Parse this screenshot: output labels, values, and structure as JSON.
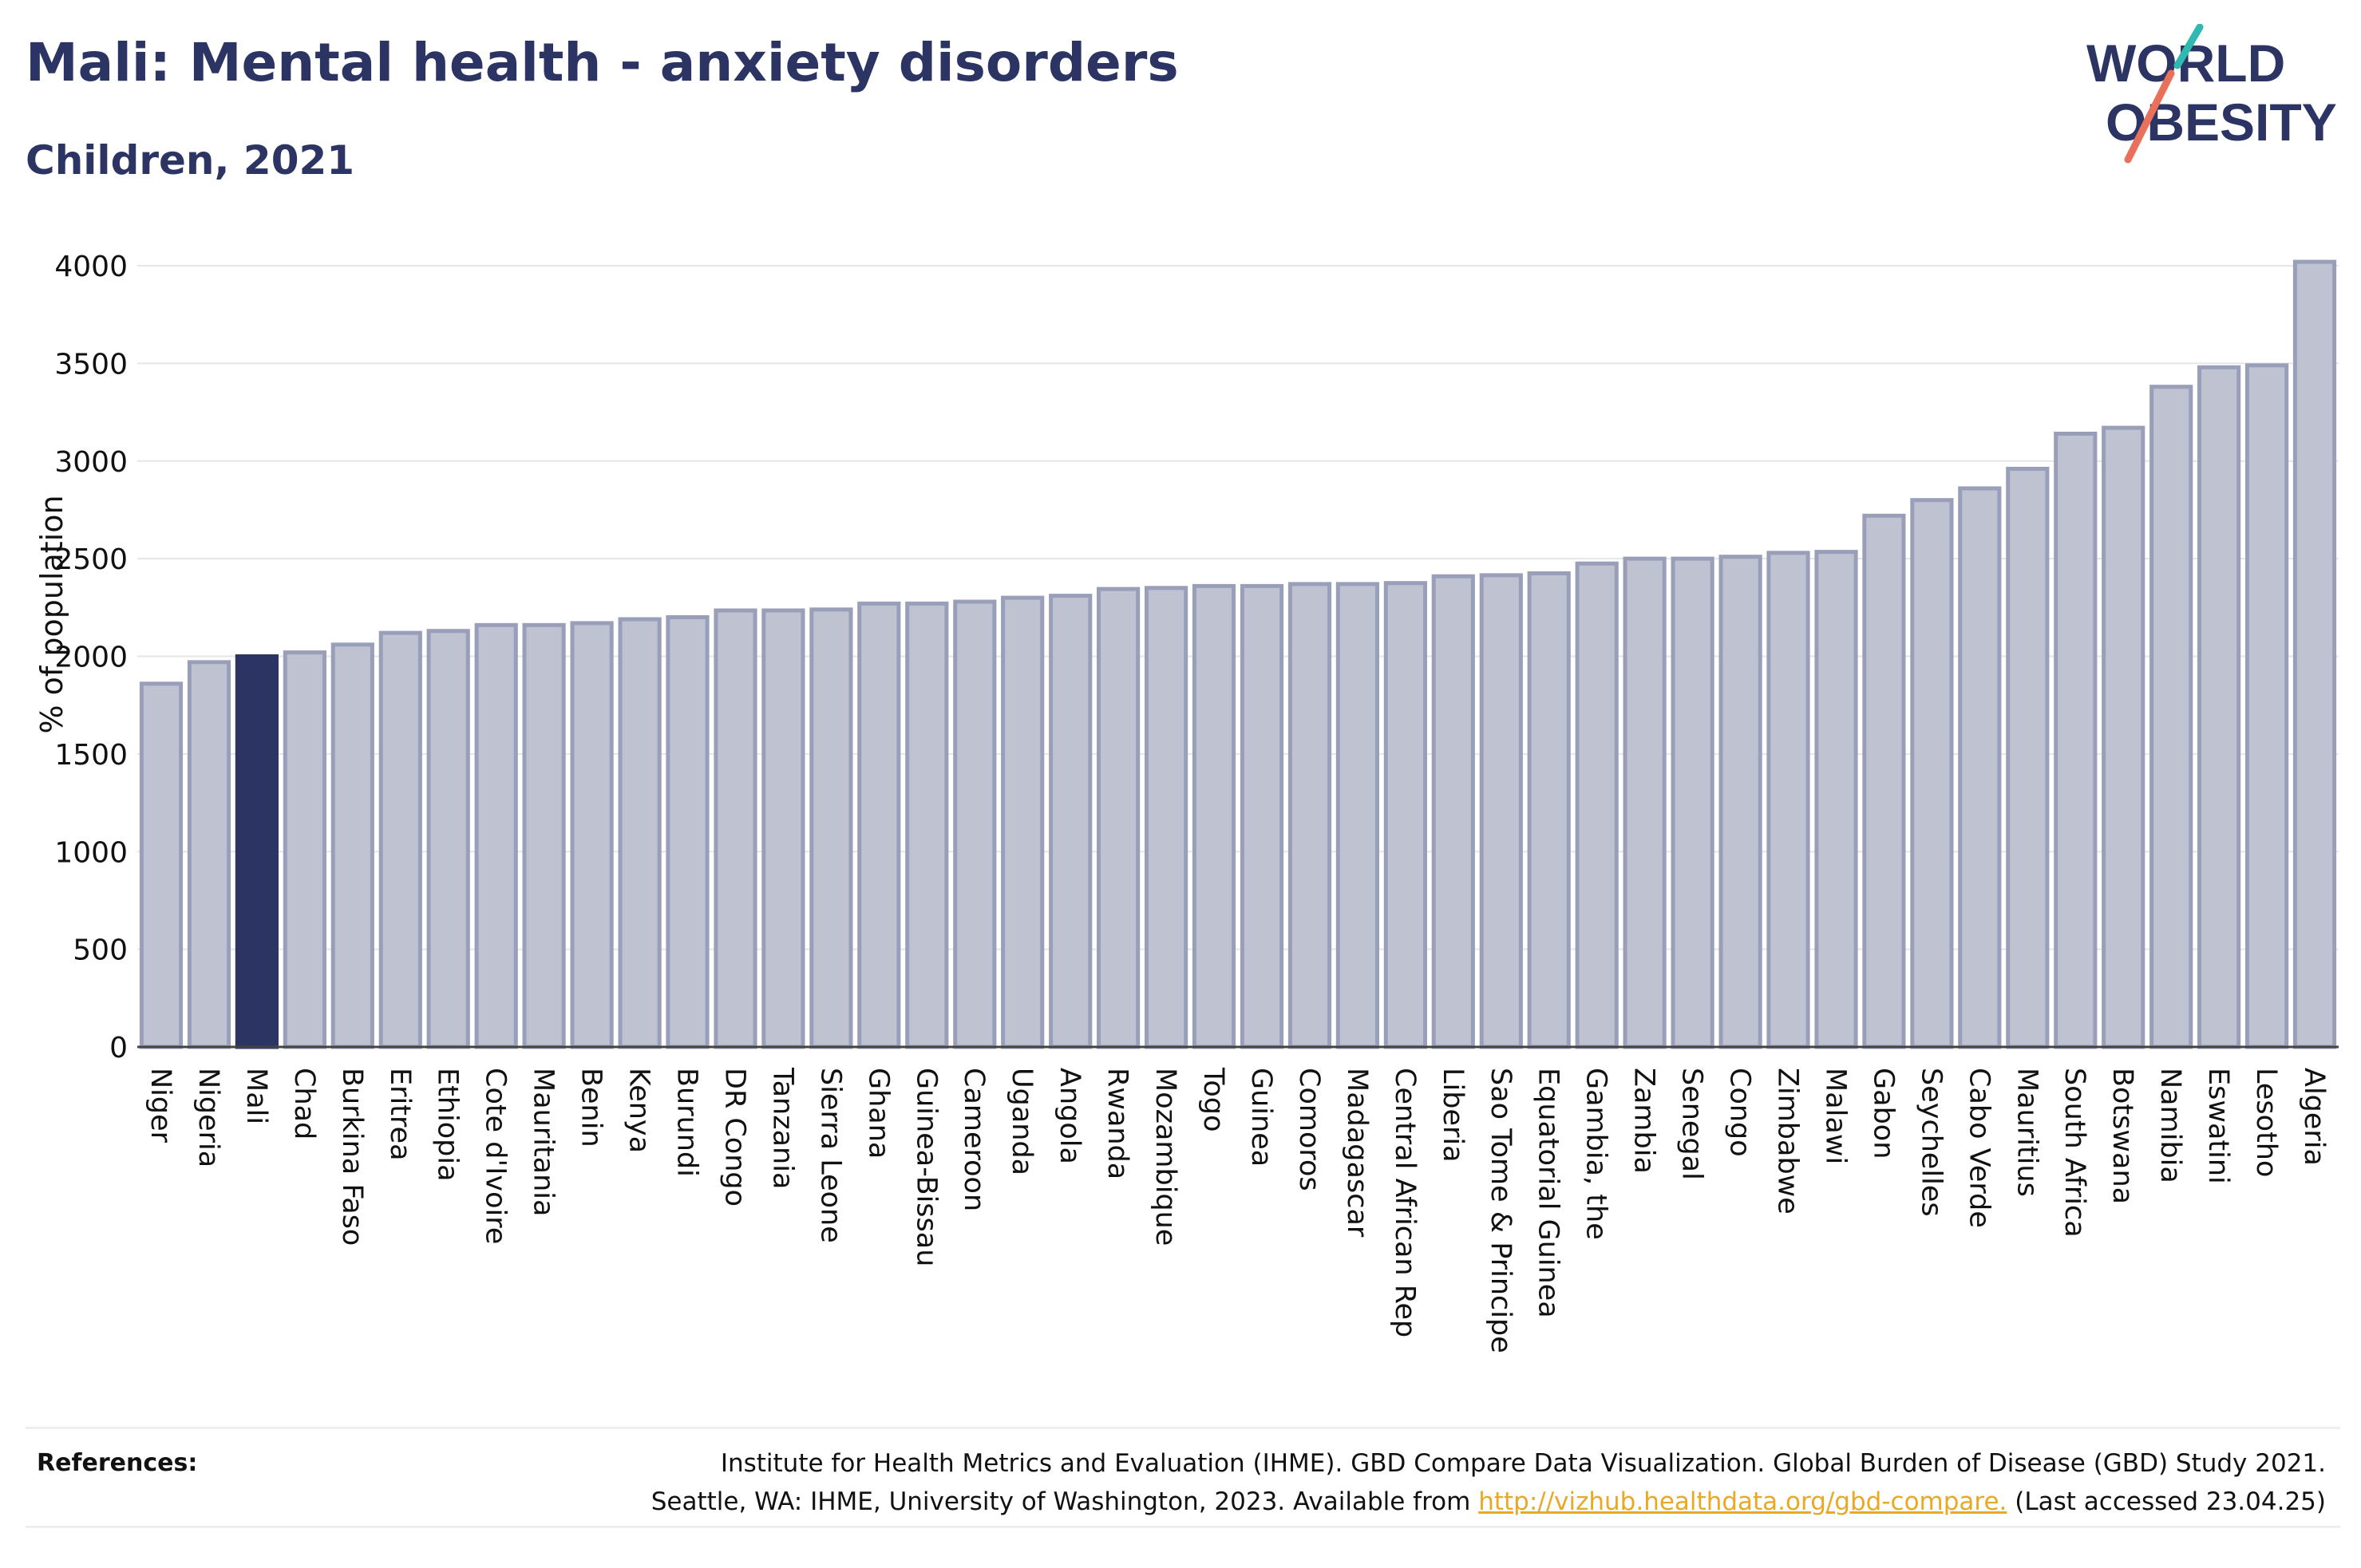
{
  "header": {
    "title": "Mali: Mental health - anxiety disorders",
    "subtitle": "Children, 2021"
  },
  "logo": {
    "line1": "WORLD",
    "line2": "OBESITY"
  },
  "colors": {
    "bar": "#bfc2d1",
    "bar_stroke": "#9a9fb9",
    "highlight": "#2b3463",
    "grid": "#e6e6e6",
    "text": "#2b3463",
    "link": "#e9a825"
  },
  "chart_data": {
    "type": "bar",
    "ylabel": "% of population",
    "ylim": [
      0,
      4000
    ],
    "yticks": [
      0,
      500,
      1000,
      1500,
      2000,
      2500,
      3000,
      3500,
      4000
    ],
    "highlight": "Mali",
    "grid": true,
    "categories": [
      "Niger",
      "Nigeria",
      "Mali",
      "Chad",
      "Burkina Faso",
      "Eritrea",
      "Ethiopia",
      "Cote d'Ivoire",
      "Mauritania",
      "Benin",
      "Kenya",
      "Burundi",
      "DR Congo",
      "Tanzania",
      "Sierra Leone",
      "Ghana",
      "Guinea-Bissau",
      "Cameroon",
      "Uganda",
      "Angola",
      "Rwanda",
      "Mozambique",
      "Togo",
      "Guinea",
      "Comoros",
      "Madagascar",
      "Central African Rep",
      "Liberia",
      "Sao Tome & Principe",
      "Equatorial Guinea",
      "Gambia, the",
      "Zambia",
      "Senegal",
      "Congo",
      "Zimbabwe",
      "Malawi",
      "Gabon",
      "Seychelles",
      "Cabo Verde",
      "Mauritius",
      "South Africa",
      "Botswana",
      "Namibia",
      "Eswatini",
      "Lesotho",
      "Algeria"
    ],
    "values": [
      1860,
      1970,
      2000,
      2020,
      2060,
      2120,
      2130,
      2160,
      2160,
      2170,
      2190,
      2200,
      2235,
      2235,
      2240,
      2270,
      2270,
      2280,
      2300,
      2310,
      2345,
      2350,
      2360,
      2360,
      2370,
      2370,
      2375,
      2410,
      2415,
      2425,
      2475,
      2500,
      2500,
      2510,
      2530,
      2535,
      2720,
      2800,
      2860,
      2960,
      3140,
      3170,
      3380,
      3480,
      3490,
      4020
    ]
  },
  "references": {
    "label": "References:",
    "line1": "Institute for Health Metrics and Evaluation (IHME). GBD Compare Data Visualization. Global Burden of Disease (GBD) Study 2021.",
    "line2_before": "Seattle, WA: IHME, University of Washington, 2023. Available from ",
    "link": "http://vizhub.healthdata.org/gbd-compare.",
    "line2_after": " (Last accessed 23.04.25)"
  }
}
